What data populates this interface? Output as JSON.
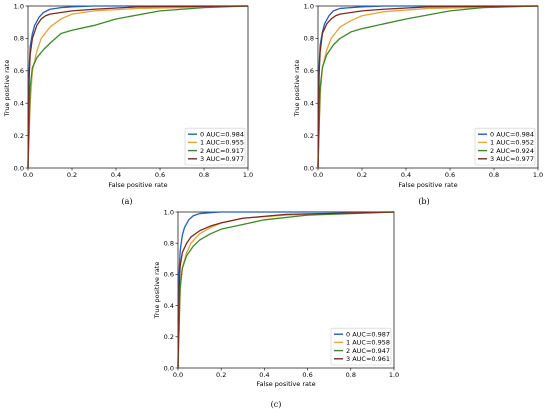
{
  "panels": [
    {
      "caption": "(a)"
    },
    {
      "caption": "(b)"
    },
    {
      "caption": "(c)"
    }
  ],
  "chart_data": [
    {
      "type": "line",
      "title": "",
      "xlabel": "False positive rate",
      "ylabel": "True positive rate",
      "xlim": [
        0,
        1
      ],
      "ylim": [
        0,
        1
      ],
      "xticks": [
        "0.0",
        "0.2",
        "0.4",
        "0.6",
        "0.8",
        "1.0"
      ],
      "yticks": [
        "0.0",
        "0.2",
        "0.4",
        "0.6",
        "0.8",
        "1.0"
      ],
      "grid": false,
      "legend_position": "lower-right",
      "series": [
        {
          "name": "0 AUC=0.984",
          "color": "#1f5fbf",
          "x": [
            0,
            0.005,
            0.01,
            0.02,
            0.03,
            0.05,
            0.07,
            0.1,
            0.15,
            0.2,
            0.3,
            0.5,
            1.0
          ],
          "y": [
            0,
            0.6,
            0.75,
            0.83,
            0.88,
            0.93,
            0.96,
            0.98,
            0.99,
            0.995,
            1.0,
            1.0,
            1.0
          ]
        },
        {
          "name": "1 AUC=0.955",
          "color": "#e8a33a",
          "x": [
            0,
            0.01,
            0.02,
            0.04,
            0.06,
            0.1,
            0.15,
            0.2,
            0.3,
            0.5,
            0.7,
            1.0
          ],
          "y": [
            0,
            0.4,
            0.6,
            0.72,
            0.8,
            0.87,
            0.92,
            0.95,
            0.97,
            0.985,
            0.99,
            1.0
          ]
        },
        {
          "name": "2 AUC=0.917",
          "color": "#3a8a2a",
          "x": [
            0,
            0.01,
            0.02,
            0.04,
            0.07,
            0.1,
            0.15,
            0.2,
            0.3,
            0.4,
            0.6,
            0.8,
            1.0
          ],
          "y": [
            0,
            0.5,
            0.62,
            0.68,
            0.73,
            0.77,
            0.83,
            0.85,
            0.88,
            0.92,
            0.97,
            0.99,
            1.0
          ]
        },
        {
          "name": "3 AUC=0.977",
          "color": "#7a2b20",
          "x": [
            0,
            0.005,
            0.01,
            0.02,
            0.04,
            0.06,
            0.08,
            0.1,
            0.15,
            0.2,
            0.3,
            0.5,
            1.0
          ],
          "y": [
            0,
            0.55,
            0.7,
            0.8,
            0.88,
            0.92,
            0.94,
            0.95,
            0.96,
            0.97,
            0.98,
            0.995,
            1.0
          ]
        }
      ]
    },
    {
      "type": "line",
      "title": "",
      "xlabel": "False positive rate",
      "ylabel": "True positive rate",
      "xlim": [
        0,
        1
      ],
      "ylim": [
        0,
        1
      ],
      "xticks": [
        "0.0",
        "0.2",
        "0.4",
        "0.6",
        "0.8",
        "1.0"
      ],
      "yticks": [
        "0.0",
        "0.2",
        "0.4",
        "0.6",
        "0.8",
        "1.0"
      ],
      "grid": false,
      "legend_position": "lower-right",
      "series": [
        {
          "name": "0 AUC=0.984",
          "color": "#1f5fbf",
          "x": [
            0,
            0.005,
            0.01,
            0.02,
            0.03,
            0.05,
            0.07,
            0.1,
            0.15,
            0.2,
            0.3,
            0.5,
            1.0
          ],
          "y": [
            0,
            0.62,
            0.76,
            0.84,
            0.89,
            0.94,
            0.97,
            0.985,
            0.99,
            0.995,
            1.0,
            1.0,
            1.0
          ]
        },
        {
          "name": "1 AUC=0.952",
          "color": "#e8a33a",
          "x": [
            0,
            0.01,
            0.02,
            0.04,
            0.06,
            0.1,
            0.15,
            0.2,
            0.3,
            0.5,
            0.7,
            1.0
          ],
          "y": [
            0,
            0.45,
            0.62,
            0.73,
            0.8,
            0.87,
            0.91,
            0.94,
            0.965,
            0.985,
            0.99,
            1.0
          ]
        },
        {
          "name": "2 AUC=0.924",
          "color": "#3a8a2a",
          "x": [
            0,
            0.01,
            0.02,
            0.04,
            0.07,
            0.1,
            0.15,
            0.2,
            0.3,
            0.4,
            0.6,
            0.75,
            1.0
          ],
          "y": [
            0,
            0.5,
            0.62,
            0.7,
            0.76,
            0.8,
            0.84,
            0.86,
            0.89,
            0.92,
            0.97,
            0.99,
            1.0
          ]
        },
        {
          "name": "3 AUC=0.977",
          "color": "#7a2b20",
          "x": [
            0,
            0.005,
            0.01,
            0.02,
            0.04,
            0.06,
            0.08,
            0.1,
            0.15,
            0.2,
            0.3,
            0.5,
            1.0
          ],
          "y": [
            0,
            0.58,
            0.72,
            0.83,
            0.89,
            0.92,
            0.94,
            0.95,
            0.96,
            0.97,
            0.98,
            0.995,
            1.0
          ]
        }
      ]
    },
    {
      "type": "line",
      "title": "",
      "xlabel": "False positive rate",
      "ylabel": "True positive rate",
      "xlim": [
        0,
        1
      ],
      "ylim": [
        0,
        1
      ],
      "xticks": [
        "0.0",
        "0.2",
        "0.4",
        "0.6",
        "0.8",
        "1.0"
      ],
      "yticks": [
        "0.0",
        "0.2",
        "0.4",
        "0.6",
        "0.8",
        "1.0"
      ],
      "grid": false,
      "legend_position": "lower-right",
      "series": [
        {
          "name": "0 AUC=0.987",
          "color": "#1f5fbf",
          "x": [
            0,
            0.005,
            0.01,
            0.02,
            0.03,
            0.05,
            0.07,
            0.1,
            0.15,
            0.2,
            0.3,
            0.5,
            1.0
          ],
          "y": [
            0,
            0.6,
            0.75,
            0.85,
            0.9,
            0.95,
            0.975,
            0.99,
            0.995,
            1.0,
            1.0,
            1.0,
            1.0
          ]
        },
        {
          "name": "1 AUC=0.958",
          "color": "#e8a33a",
          "x": [
            0,
            0.01,
            0.02,
            0.04,
            0.06,
            0.1,
            0.15,
            0.2,
            0.3,
            0.5,
            0.7,
            1.0
          ],
          "y": [
            0,
            0.5,
            0.64,
            0.74,
            0.8,
            0.86,
            0.9,
            0.93,
            0.96,
            0.98,
            0.99,
            1.0
          ]
        },
        {
          "name": "2 AUC=0.947",
          "color": "#3a8a2a",
          "x": [
            0,
            0.01,
            0.02,
            0.04,
            0.07,
            0.1,
            0.15,
            0.2,
            0.3,
            0.4,
            0.6,
            0.8,
            1.0
          ],
          "y": [
            0,
            0.52,
            0.64,
            0.72,
            0.78,
            0.82,
            0.86,
            0.89,
            0.92,
            0.95,
            0.98,
            0.99,
            1.0
          ]
        },
        {
          "name": "3 AUC=0.961",
          "color": "#7a2b20",
          "x": [
            0,
            0.005,
            0.01,
            0.02,
            0.04,
            0.06,
            0.08,
            0.1,
            0.15,
            0.2,
            0.3,
            0.5,
            1.0
          ],
          "y": [
            0,
            0.5,
            0.65,
            0.74,
            0.8,
            0.84,
            0.86,
            0.88,
            0.91,
            0.93,
            0.96,
            0.985,
            1.0
          ]
        }
      ]
    }
  ]
}
